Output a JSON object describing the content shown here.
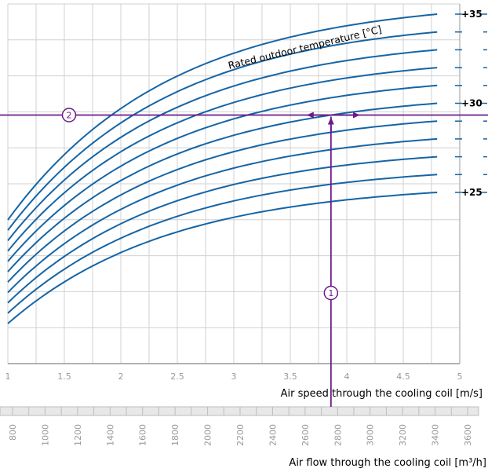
{
  "chart_data": {
    "type": "line",
    "title": "",
    "curve_label": "Rated outdoor temperature [°C]",
    "xlabel": "Air  speed through the cooling coil [m/s]",
    "x_ticks": [
      "1",
      "1.5",
      "2",
      "2.5",
      "3",
      "3.5",
      "4",
      "4.5",
      "5"
    ],
    "xlim": [
      1,
      5
    ],
    "secondary_axis": {
      "label": "Air flow through the cooling coil [m³/h]",
      "ticks": [
        "800",
        "1000",
        "1200",
        "1400",
        "1600",
        "1800",
        "2000",
        "2200",
        "2400",
        "2600",
        "2800",
        "3000",
        "3200",
        "3400",
        "3600"
      ]
    },
    "temperature_labels": [
      {
        "text": "+35",
        "temp": 35
      },
      {
        "text": "+30",
        "temp": 30
      },
      {
        "text": "+25",
        "temp": 25
      }
    ],
    "series": [
      {
        "temp": 25
      },
      {
        "temp": 26
      },
      {
        "temp": 27
      },
      {
        "temp": 28
      },
      {
        "temp": 29
      },
      {
        "temp": 30
      },
      {
        "temp": 31
      },
      {
        "temp": 32
      },
      {
        "temp": 33
      },
      {
        "temp": 34
      },
      {
        "temp": 35
      }
    ],
    "example": {
      "marker_1": "1",
      "marker_2": "2",
      "air_speed": 3.86,
      "curve_temp": 30
    },
    "colors": {
      "curve": "#1565a6",
      "example_line": "#6a1b8a",
      "grid": "#d0d0d0",
      "axis": "#9a9a9a",
      "ruler_fill": "#e8e8e8"
    }
  }
}
